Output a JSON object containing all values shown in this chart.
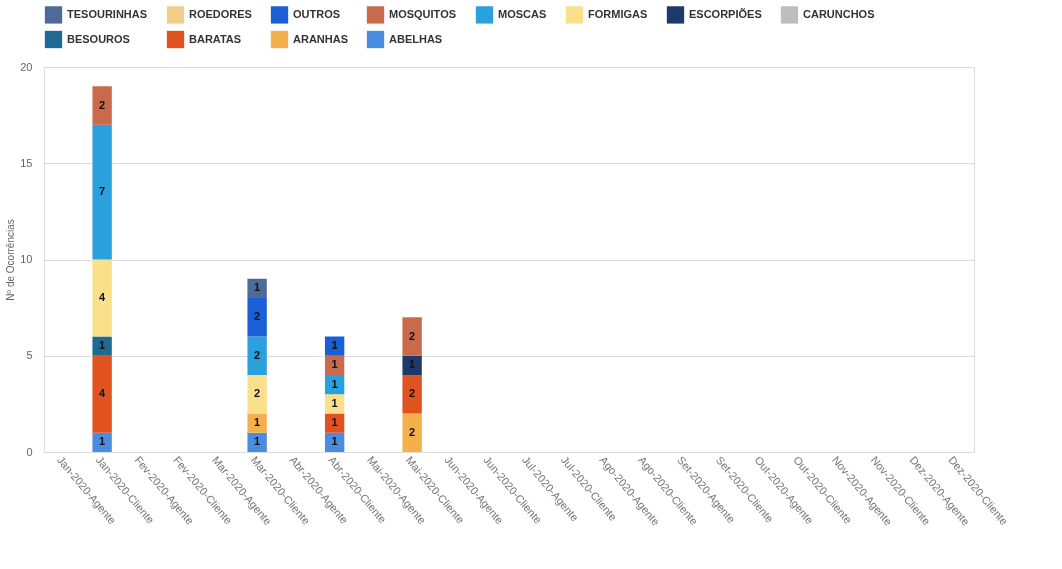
{
  "chart_data": {
    "type": "bar",
    "stacked": true,
    "ylabel": "Nº de Ocorrências",
    "categories": [
      "Jan-2020-Agente",
      "Jan-2020-Cliente",
      "Fev-2020-Agente",
      "Fev-2020-Cliente",
      "Mar-2020-Agente",
      "Mar-2020-Cliente",
      "Abr-2020-Agente",
      "Abr-2020-Cliente",
      "Mai-2020-Agente",
      "Mai-2020-Cliente",
      "Jun-2020-Agente",
      "Jun-2020-Cliente",
      "Jul-2020-Agente",
      "Jul-2020-Cliente",
      "Ago-2020-Agente",
      "Ago-2020-Cliente",
      "Set-2020-Agente",
      "Set-2020-Cliente",
      "Out-2020-Agente",
      "Out-2020-Cliente",
      "Nov-2020-Agente",
      "Nov-2020-Cliente",
      "Dez-2020-Agente",
      "Dez-2020-Cliente"
    ],
    "series": [
      {
        "name": "ABELHAS",
        "color": "#4a8de0",
        "values": [
          null,
          1,
          null,
          null,
          null,
          1,
          null,
          1,
          null,
          null,
          null,
          null,
          null,
          null,
          null,
          null,
          null,
          null,
          null,
          null,
          null,
          null,
          null,
          null
        ]
      },
      {
        "name": "ARANHAS",
        "color": "#f4b04a",
        "values": [
          null,
          null,
          null,
          null,
          null,
          1,
          null,
          null,
          null,
          2,
          null,
          null,
          null,
          null,
          null,
          null,
          null,
          null,
          null,
          null,
          null,
          null,
          null,
          null
        ]
      },
      {
        "name": "BARATAS",
        "color": "#e0521f",
        "values": [
          null,
          4,
          null,
          null,
          null,
          null,
          null,
          1,
          null,
          2,
          null,
          null,
          null,
          null,
          null,
          null,
          null,
          null,
          null,
          null,
          null,
          null,
          null,
          null
        ]
      },
      {
        "name": "BESOUROS",
        "color": "#1f6a94",
        "values": [
          null,
          1,
          null,
          null,
          null,
          null,
          null,
          null,
          null,
          null,
          null,
          null,
          null,
          null,
          null,
          null,
          null,
          null,
          null,
          null,
          null,
          null,
          null,
          null
        ]
      },
      {
        "name": "CARUNCHOS",
        "color": "#bdbdbd",
        "values": [
          null,
          null,
          null,
          null,
          null,
          null,
          null,
          null,
          null,
          null,
          null,
          null,
          null,
          null,
          null,
          null,
          null,
          null,
          null,
          null,
          null,
          null,
          null,
          null
        ]
      },
      {
        "name": "ESCORPIÕES",
        "color": "#1e3a6a",
        "values": [
          null,
          null,
          null,
          null,
          null,
          null,
          null,
          null,
          null,
          1,
          null,
          null,
          null,
          null,
          null,
          null,
          null,
          null,
          null,
          null,
          null,
          null,
          null,
          null
        ]
      },
      {
        "name": "FORMIGAS",
        "color": "#fbe08c",
        "values": [
          null,
          4,
          null,
          null,
          null,
          2,
          null,
          1,
          null,
          null,
          null,
          null,
          null,
          null,
          null,
          null,
          null,
          null,
          null,
          null,
          null,
          null,
          null,
          null
        ]
      },
      {
        "name": "MOSCAS",
        "color": "#2aa0dc",
        "values": [
          null,
          7,
          null,
          null,
          null,
          2,
          null,
          1,
          null,
          null,
          null,
          null,
          null,
          null,
          null,
          null,
          null,
          null,
          null,
          null,
          null,
          null,
          null,
          null
        ]
      },
      {
        "name": "MOSQUITOS",
        "color": "#c96a4c",
        "values": [
          null,
          2,
          null,
          null,
          null,
          null,
          null,
          1,
          null,
          2,
          null,
          null,
          null,
          null,
          null,
          null,
          null,
          null,
          null,
          null,
          null,
          null,
          null,
          null
        ]
      },
      {
        "name": "OUTROS",
        "color": "#1a5fd6",
        "values": [
          null,
          null,
          null,
          null,
          null,
          2,
          null,
          1,
          null,
          null,
          null,
          null,
          null,
          null,
          null,
          null,
          null,
          null,
          null,
          null,
          null,
          null,
          null,
          null
        ]
      },
      {
        "name": "ROEDORES",
        "color": "#f0cf8a",
        "values": [
          null,
          null,
          null,
          null,
          null,
          null,
          null,
          null,
          null,
          null,
          null,
          null,
          null,
          null,
          null,
          null,
          null,
          null,
          null,
          null,
          null,
          null,
          null,
          null
        ]
      },
      {
        "name": "TESOURINHAS",
        "color": "#4e6a96",
        "values": [
          null,
          null,
          null,
          null,
          null,
          1,
          null,
          null,
          null,
          null,
          null,
          null,
          null,
          null,
          null,
          null,
          null,
          null,
          null,
          null,
          null,
          null,
          null,
          null
        ]
      }
    ],
    "ylim": [
      0,
      20
    ],
    "yticks": [
      0,
      5,
      10,
      15,
      20
    ],
    "grid": "y",
    "legend": "top",
    "data_labels": true
  }
}
